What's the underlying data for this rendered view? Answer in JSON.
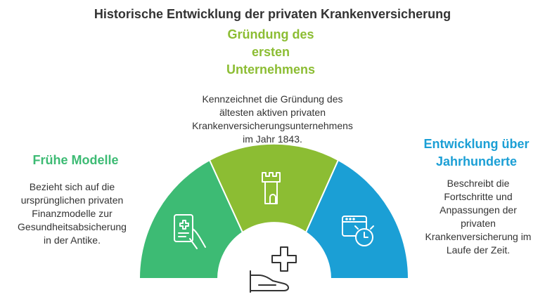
{
  "title": "Historische Entwicklung der privaten Krankenversicherung",
  "segments": [
    {
      "heading_lines": [
        "Frühe Modelle"
      ],
      "description_lines": [
        "Bezieht sich auf die",
        "ursprünglichen privaten",
        "Finanzmodelle zur",
        "Gesundheitsabsicherung",
        "in der Antike."
      ],
      "color": "#3dbb74",
      "icon": "tablet-medical-icon"
    },
    {
      "heading_lines": [
        "Gründung des",
        "ersten",
        "Unternehmens"
      ],
      "description_lines": [
        "Kennzeichnet die Gründung des",
        "ältesten aktiven privaten",
        "Krankenversicherungsunternehmens",
        "im Jahr 1843."
      ],
      "color": "#8cbd33",
      "icon": "tower-icon"
    },
    {
      "heading_lines": [
        "Entwicklung über",
        "Jahrhunderte"
      ],
      "description_lines": [
        "Beschreibt die",
        "Fortschritte und",
        "Anpassungen der",
        "privaten",
        "Krankenversicherung im",
        "Laufe der Zeit."
      ],
      "color": "#1b9fd5",
      "icon": "calendar-clock-icon"
    }
  ],
  "center_icons": [
    "medical-cross-icon",
    "hand-icon"
  ]
}
